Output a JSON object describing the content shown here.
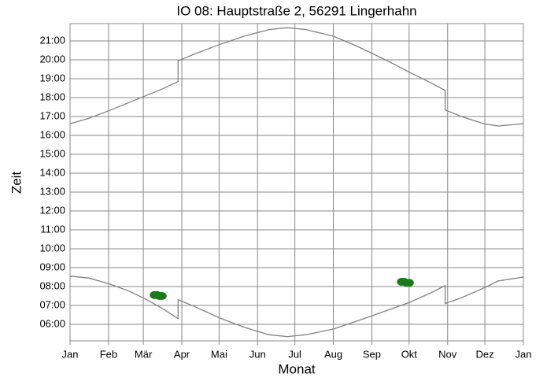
{
  "chart_data": {
    "type": "line",
    "title": "IO 08: Hauptstraße 2, 56291 Lingerhahn",
    "xlabel": "Monat",
    "ylabel": "Zeit",
    "xlim": [
      0,
      365
    ],
    "xticks": [
      {
        "value": 0,
        "label": "Jan"
      },
      {
        "value": 31,
        "label": "Feb"
      },
      {
        "value": 59,
        "label": "Mär"
      },
      {
        "value": 90,
        "label": "Apr"
      },
      {
        "value": 120,
        "label": "Mai"
      },
      {
        "value": 151,
        "label": "Jun"
      },
      {
        "value": 181,
        "label": "Jul"
      },
      {
        "value": 212,
        "label": "Aug"
      },
      {
        "value": 243,
        "label": "Sep"
      },
      {
        "value": 273,
        "label": "Okt"
      },
      {
        "value": 304,
        "label": "Nov"
      },
      {
        "value": 334,
        "label": "Dez"
      },
      {
        "value": 365,
        "label": "Jan"
      }
    ],
    "ylim": [
      5.125,
      21.917
    ],
    "yticks": [
      {
        "value": 6,
        "label": "06:00"
      },
      {
        "value": 7,
        "label": "07:00"
      },
      {
        "value": 8,
        "label": "08:00"
      },
      {
        "value": 9,
        "label": "09:00"
      },
      {
        "value": 10,
        "label": "10:00"
      },
      {
        "value": 11,
        "label": "11:00"
      },
      {
        "value": 12,
        "label": "12:00"
      },
      {
        "value": 13,
        "label": "13:00"
      },
      {
        "value": 14,
        "label": "14:00"
      },
      {
        "value": 15,
        "label": "15:00"
      },
      {
        "value": 16,
        "label": "16:00"
      },
      {
        "value": 17,
        "label": "17:00"
      },
      {
        "value": 18,
        "label": "18:00"
      },
      {
        "value": 19,
        "label": "19:00"
      },
      {
        "value": 20,
        "label": "20:00"
      },
      {
        "value": 21,
        "label": "21:00"
      }
    ],
    "grid": true,
    "x": [
      0,
      15,
      31,
      46,
      59,
      74,
      87,
      87,
      100,
      120,
      140,
      160,
      175,
      190,
      212,
      230,
      243,
      260,
      273,
      290,
      302,
      302,
      315,
      334,
      345,
      365
    ],
    "series": [
      {
        "color": "#808080",
        "values": [
          16.62,
          16.9,
          17.3,
          17.7,
          18.05,
          18.45,
          18.85,
          19.95,
          20.3,
          20.8,
          21.25,
          21.6,
          21.7,
          21.6,
          21.25,
          20.75,
          20.35,
          19.8,
          19.35,
          18.8,
          18.38,
          17.35,
          17.0,
          16.6,
          16.5,
          16.62
        ]
      },
      {
        "color": "#808080",
        "values": [
          8.55,
          8.45,
          8.15,
          7.8,
          7.4,
          6.85,
          6.3,
          7.3,
          6.95,
          6.35,
          5.85,
          5.45,
          5.35,
          5.45,
          5.75,
          6.15,
          6.45,
          6.85,
          7.15,
          7.65,
          8.05,
          7.1,
          7.4,
          7.95,
          8.3,
          8.5
        ]
      }
    ],
    "shadow": {
      "color": "#1a7a1a",
      "x": [
        68,
        70,
        72,
        74,
        267,
        269,
        271,
        273
      ],
      "y": [
        7.55,
        7.55,
        7.5,
        7.5,
        8.25,
        8.25,
        8.2,
        8.2
      ]
    }
  }
}
